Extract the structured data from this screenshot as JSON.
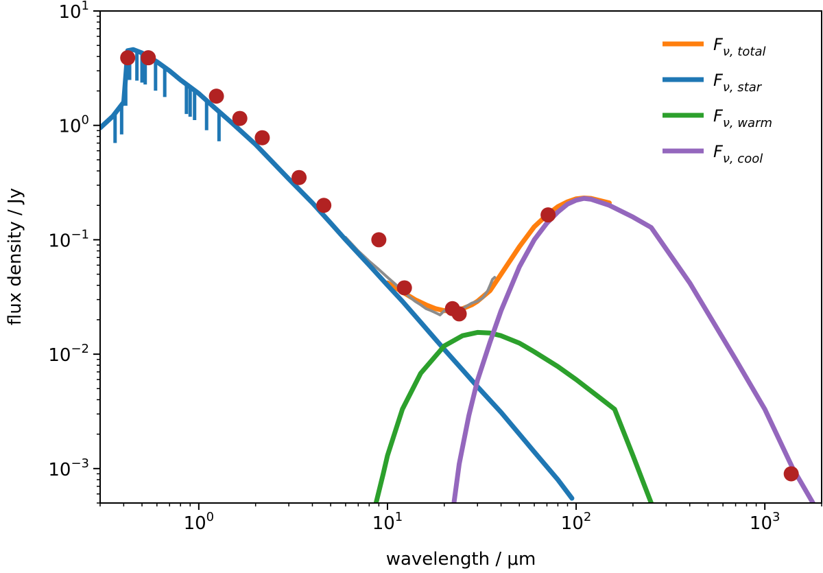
{
  "chart_data": {
    "type": "line",
    "xlabel": "wavelength / μm",
    "ylabel": "flux density / Jy",
    "xscale": "log",
    "yscale": "log",
    "xlim": [
      0.3,
      2000
    ],
    "ylim": [
      0.0005,
      10
    ],
    "x_ticks": [
      {
        "value": 1,
        "base": "10",
        "exp": "0"
      },
      {
        "value": 10,
        "base": "10",
        "exp": "1"
      },
      {
        "value": 100,
        "base": "10",
        "exp": "2"
      },
      {
        "value": 1000,
        "base": "10",
        "exp": "3"
      }
    ],
    "y_ticks": [
      {
        "value": 0.001,
        "base": "10",
        "exp": "−3"
      },
      {
        "value": 0.01,
        "base": "10",
        "exp": "−2"
      },
      {
        "value": 0.1,
        "base": "10",
        "exp": "−1"
      },
      {
        "value": 1,
        "base": "10",
        "exp": "0"
      },
      {
        "value": 10,
        "base": "10",
        "exp": "1"
      }
    ],
    "grid": false,
    "legend_position": "top-right",
    "legend": [
      {
        "symbol": "F",
        "subscript": "ν, total",
        "color": "#ff7f0e"
      },
      {
        "symbol": "F",
        "subscript": "ν, star",
        "color": "#1f77b4"
      },
      {
        "symbol": "F",
        "subscript": "ν, warm",
        "color": "#2ca02c"
      },
      {
        "symbol": "F",
        "subscript": "ν, cool",
        "color": "#9467bd"
      }
    ],
    "series": [
      {
        "key": "star",
        "color": "#1f77b4",
        "x": [
          0.3,
          0.35,
          0.4,
          0.42,
          0.45,
          0.5,
          0.6,
          0.7,
          0.8,
          1.0,
          1.2,
          1.5,
          2.0,
          3.0,
          4.0,
          5.0,
          6.0,
          8.0,
          10.0,
          12.0,
          15.0,
          20.0,
          25.0,
          30.0,
          40.0,
          50.0,
          60.0,
          80.0,
          95.0
        ],
        "y": [
          0.95,
          1.2,
          1.6,
          4.5,
          4.6,
          4.3,
          3.6,
          3.0,
          2.5,
          1.9,
          1.45,
          1.05,
          0.68,
          0.34,
          0.21,
          0.14,
          0.1,
          0.06,
          0.04,
          0.029,
          0.019,
          0.011,
          0.0073,
          0.0052,
          0.0031,
          0.002,
          0.0014,
          0.0008,
          0.00055
        ]
      },
      {
        "key": "total",
        "color": "#ff7f0e",
        "x": [
          10,
          12,
          14,
          16,
          18,
          20,
          22,
          25,
          28,
          30,
          35,
          40,
          50,
          60,
          70,
          80,
          90,
          100,
          110,
          120,
          150
        ],
        "y": [
          0.042,
          0.035,
          0.03,
          0.027,
          0.025,
          0.024,
          0.024,
          0.025,
          0.027,
          0.029,
          0.036,
          0.05,
          0.087,
          0.13,
          0.165,
          0.195,
          0.215,
          0.228,
          0.232,
          0.23,
          0.21
        ]
      },
      {
        "key": "warm",
        "color": "#2ca02c",
        "x": [
          8.7,
          9.5,
          10,
          12,
          15,
          20,
          25,
          30,
          35,
          40,
          50,
          60,
          80,
          100,
          130,
          160,
          200,
          250
        ],
        "y": [
          0.0005,
          0.0009,
          0.0013,
          0.0033,
          0.0068,
          0.0118,
          0.0145,
          0.0155,
          0.0153,
          0.0145,
          0.0125,
          0.0105,
          0.0078,
          0.006,
          0.0043,
          0.0033,
          0.0013,
          0.0005
        ]
      },
      {
        "key": "cool",
        "color": "#9467bd",
        "x": [
          22.5,
          24,
          27,
          30,
          35,
          40,
          50,
          60,
          70,
          80,
          90,
          100,
          110,
          120,
          150,
          200,
          250,
          400,
          700,
          1000,
          1400,
          1800
        ],
        "y": [
          0.0005,
          0.0011,
          0.0029,
          0.0059,
          0.0128,
          0.024,
          0.058,
          0.1,
          0.14,
          0.175,
          0.205,
          0.222,
          0.23,
          0.226,
          0.2,
          0.158,
          0.128,
          0.042,
          0.009,
          0.0033,
          0.00102,
          0.0005
        ]
      },
      {
        "key": "spectrum",
        "color": "#8c8c8c",
        "x": [
          6,
          7,
          8,
          9,
          10,
          11,
          12,
          13,
          14,
          15,
          16,
          17,
          18,
          19,
          20,
          22,
          24,
          26,
          28,
          30,
          32,
          34,
          35,
          36,
          37
        ],
        "y": [
          0.105,
          0.08,
          0.065,
          0.055,
          0.047,
          0.041,
          0.036,
          0.032,
          0.029,
          0.027,
          0.025,
          0.024,
          0.023,
          0.022,
          0.024,
          0.023,
          0.024,
          0.026,
          0.028,
          0.029,
          0.031,
          0.036,
          0.04,
          0.045,
          0.047
        ]
      }
    ],
    "photometry": {
      "color": "#b22222",
      "x": [
        0.42,
        0.54,
        1.24,
        1.65,
        2.17,
        3.4,
        4.6,
        9.0,
        12.3,
        22.1,
        24.0,
        71.0,
        1380.0
      ],
      "y": [
        3.9,
        3.9,
        1.8,
        1.15,
        0.78,
        0.35,
        0.2,
        0.1,
        0.038,
        0.025,
        0.0225,
        0.165,
        0.0009
      ]
    }
  }
}
